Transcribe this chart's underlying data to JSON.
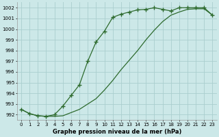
{
  "line1_x": [
    0,
    1,
    2,
    3,
    4,
    5,
    6,
    7,
    8,
    9,
    10,
    11,
    12,
    13,
    14,
    15,
    16,
    17,
    18,
    19,
    20,
    21,
    22,
    23
  ],
  "line1_y": [
    992.5,
    992.1,
    991.9,
    991.85,
    992.0,
    992.8,
    993.8,
    994.8,
    997.0,
    998.8,
    999.8,
    1001.1,
    1001.4,
    1001.6,
    1001.8,
    1001.85,
    1002.0,
    1001.85,
    1001.7,
    1002.0,
    1002.0,
    1002.0,
    1002.0,
    1001.3
  ],
  "line2_x": [
    0,
    1,
    2,
    3,
    4,
    5,
    6,
    7,
    8,
    9,
    10,
    11,
    12,
    13,
    14,
    15,
    16,
    17,
    18,
    19,
    20,
    21,
    22,
    23
  ],
  "line2_y": [
    992.5,
    992.1,
    991.9,
    991.85,
    991.85,
    991.9,
    992.2,
    992.5,
    993.0,
    993.5,
    994.3,
    995.2,
    996.2,
    997.1,
    998.0,
    999.0,
    999.9,
    1000.7,
    1001.3,
    1001.6,
    1001.85,
    1001.9,
    1001.9,
    1001.3
  ],
  "line_color": "#2d6a2d",
  "bg_color": "#cce8e8",
  "grid_color": "#aacece",
  "xlabel": "Graphe pression niveau de la mer (hPa)",
  "ylim": [
    991.5,
    1002.5
  ],
  "xlim": [
    -0.5,
    23.5
  ],
  "yticks": [
    992,
    993,
    994,
    995,
    996,
    997,
    998,
    999,
    1000,
    1001,
    1002
  ],
  "xticks": [
    0,
    1,
    2,
    3,
    4,
    5,
    6,
    7,
    8,
    9,
    10,
    11,
    12,
    13,
    14,
    15,
    16,
    17,
    18,
    19,
    20,
    21,
    22,
    23
  ],
  "marker": "+",
  "marker_size": 4,
  "marker_ew": 1.0,
  "line_width": 0.9,
  "tick_fontsize": 5.0,
  "xlabel_fontsize": 6.0
}
